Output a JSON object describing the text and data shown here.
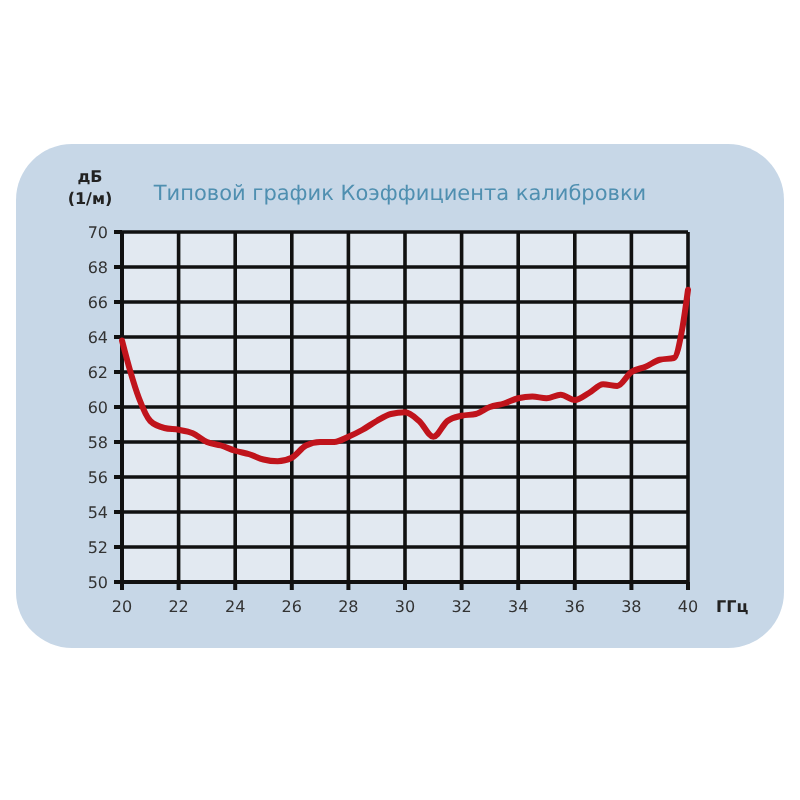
{
  "chart_data": {
    "type": "line",
    "title": "Типовой график Коэффициента калибровки",
    "ylabel": "дБ (1/м)",
    "xlabel": "ГГц",
    "x": [
      20,
      20.3,
      20.6,
      21,
      21.5,
      22,
      22.5,
      23,
      23.5,
      24,
      24.5,
      25,
      25.5,
      26,
      26.5,
      27,
      27.5,
      28,
      28.5,
      29,
      29.5,
      30,
      30.5,
      31,
      31.5,
      32,
      32.5,
      33,
      33.5,
      34,
      34.5,
      35,
      35.5,
      36,
      36.5,
      37,
      37.5,
      38,
      38.5,
      39,
      39.5,
      39.8,
      40
    ],
    "series": [
      {
        "color": "#c0141c",
        "values": [
          63.8,
          62,
          60.5,
          59.2,
          58.8,
          58.7,
          58.5,
          58.0,
          57.8,
          57.5,
          57.3,
          57.0,
          56.9,
          57.1,
          57.8,
          58.0,
          58.0,
          58.3,
          58.7,
          59.2,
          59.6,
          59.7,
          59.2,
          58.3,
          59.2,
          59.5,
          59.6,
          60.0,
          60.2,
          60.5,
          60.6,
          60.5,
          60.7,
          60.4,
          60.8,
          61.3,
          61.2,
          62.0,
          62.3,
          62.7,
          62.8,
          64.5,
          66.7
        ]
      }
    ],
    "xlim": [
      20,
      40
    ],
    "xticks": [
      20,
      22,
      24,
      26,
      28,
      30,
      32,
      34,
      36,
      38,
      40
    ],
    "ylim": [
      50,
      70
    ],
    "yticks": [
      50,
      52,
      54,
      56,
      58,
      60,
      62,
      64,
      66,
      68,
      70
    ],
    "grid": true,
    "marker": "none",
    "line_style": "solid"
  }
}
